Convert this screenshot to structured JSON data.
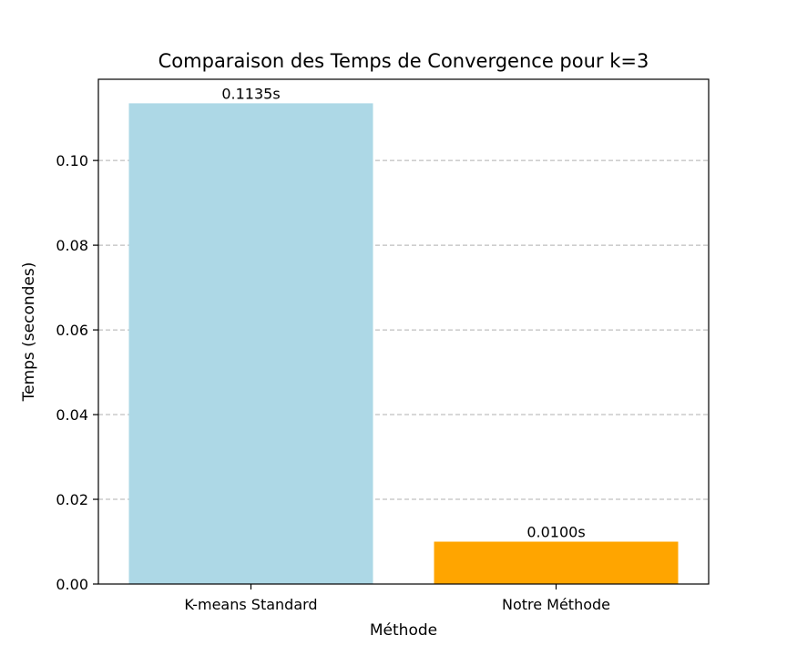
{
  "chart_data": {
    "type": "bar",
    "title": "Comparaison des Temps de Convergence pour k=3",
    "xlabel": "Méthode",
    "ylabel": "Temps (secondes)",
    "categories": [
      "K-means Standard",
      "Notre Méthode"
    ],
    "values": [
      0.1135,
      0.01
    ],
    "data_labels": [
      "0.1135s",
      "0.0100s"
    ],
    "colors": [
      "#add8e6",
      "#ffa500"
    ],
    "ylim": [
      0,
      0.1135
    ],
    "yticks": [
      0.0,
      0.02,
      0.04,
      0.06,
      0.08,
      0.1
    ],
    "ytick_labels": [
      "0.00",
      "0.02",
      "0.04",
      "0.06",
      "0.08",
      "0.10"
    ],
    "grid": "y-dashed",
    "legend": "none"
  }
}
